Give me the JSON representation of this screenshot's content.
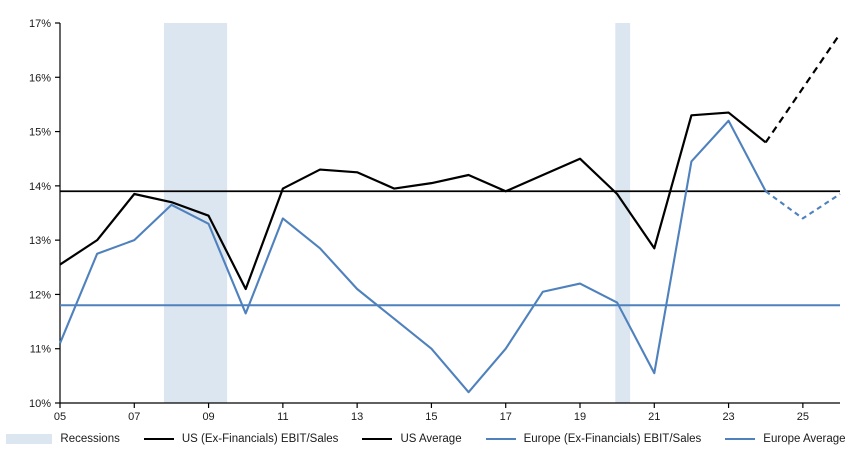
{
  "chart_data": {
    "type": "line",
    "xlabel": "",
    "ylabel": "",
    "ylim": [
      10,
      17
    ],
    "xlim": [
      2005,
      2026
    ],
    "grid": "off",
    "legend_position": "bottom-center",
    "y_tick_values": [
      10,
      11,
      12,
      13,
      14,
      15,
      16,
      17
    ],
    "y_tick_labels": [
      "10%",
      "11%",
      "12%",
      "13%",
      "14%",
      "15%",
      "16%",
      "17%"
    ],
    "x_tick_years": [
      2005,
      2007,
      2009,
      2011,
      2013,
      2015,
      2017,
      2019,
      2021,
      2023,
      2025
    ],
    "x_tick_labels": [
      "05",
      "07",
      "09",
      "11",
      "13",
      "15",
      "17",
      "19",
      "21",
      "23",
      "25"
    ],
    "years": [
      2005,
      2006,
      2007,
      2008,
      2009,
      2010,
      2011,
      2012,
      2013,
      2014,
      2015,
      2016,
      2017,
      2018,
      2019,
      2020,
      2021,
      2022,
      2023,
      2024,
      2025,
      2026
    ],
    "series": [
      {
        "name": "US (Ex-Financials) EBIT/Sales",
        "color": "#000000",
        "width": 2.2,
        "forecast_from_year": 2024,
        "dash": "7,5",
        "values": [
          12.55,
          13.0,
          13.85,
          13.7,
          13.45,
          12.1,
          13.95,
          14.3,
          14.25,
          13.95,
          14.05,
          14.2,
          13.9,
          14.2,
          14.5,
          13.85,
          12.85,
          15.3,
          15.35,
          14.8,
          15.8,
          16.8
        ]
      },
      {
        "name": "Europe (Ex-Financials) EBIT/Sales",
        "color": "#4F81BD",
        "width": 2.1,
        "forecast_from_year": 2024,
        "dash": "5,4",
        "values": [
          11.1,
          12.75,
          13.0,
          13.65,
          13.3,
          11.65,
          13.4,
          12.85,
          12.1,
          11.55,
          11.0,
          10.2,
          11.0,
          12.05,
          12.2,
          11.85,
          10.55,
          14.45,
          15.2,
          13.9,
          13.4,
          13.85
        ]
      }
    ],
    "reference_lines": [
      {
        "name": "US Average",
        "value": 13.9,
        "color": "#000000",
        "width": 1.8
      },
      {
        "name": "Europe Average",
        "value": 11.8,
        "color": "#4F81BD",
        "width": 2.0
      }
    ],
    "recessions": [
      {
        "start": 2007.8,
        "end": 2009.5
      },
      {
        "start": 2019.95,
        "end": 2020.35
      }
    ],
    "recession_fill": "#DCE6F1",
    "axis_color": "#000000",
    "legend": [
      {
        "label": "Recessions",
        "swatch": "band",
        "color": "#DCE6F1"
      },
      {
        "label": "US (Ex-Financials) EBIT/Sales",
        "swatch": "line",
        "color": "#000000"
      },
      {
        "label": "US Average",
        "swatch": "line",
        "color": "#000000"
      },
      {
        "label": "Europe (Ex-Financials) EBIT/Sales",
        "swatch": "line",
        "color": "#4F81BD"
      },
      {
        "label": "Europe Average",
        "swatch": "line",
        "color": "#4F81BD"
      }
    ]
  }
}
